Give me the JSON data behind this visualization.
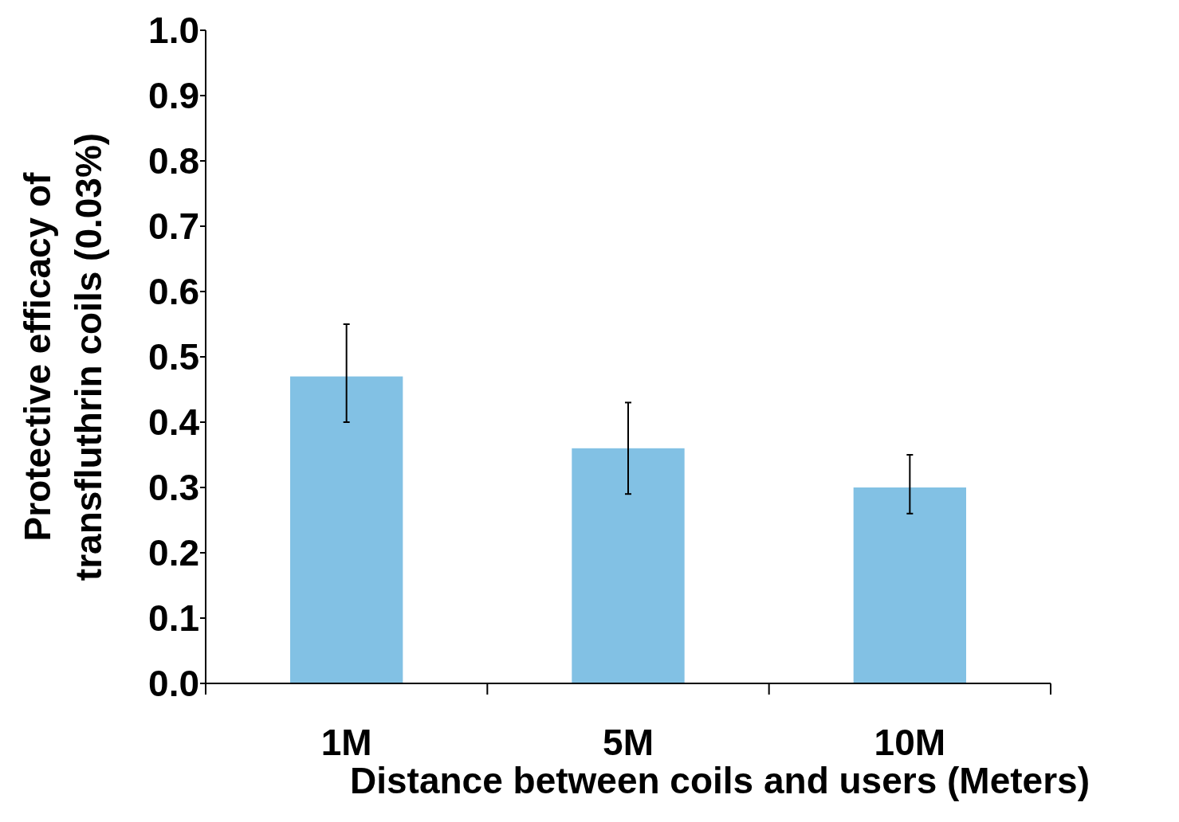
{
  "chart_data": {
    "type": "bar",
    "xlabel": "Distance between coils and users (Meters)",
    "ylabel": "Protective efficacy of\ntransfluthrin coils (0.03%)",
    "categories": [
      "1M",
      "5M",
      "10M"
    ],
    "values": [
      0.47,
      0.36,
      0.3
    ],
    "errors": [
      [
        0.4,
        0.55
      ],
      [
        0.29,
        0.43
      ],
      [
        0.26,
        0.35
      ]
    ],
    "color": "#82c1e4",
    "ylim": [
      0,
      1
    ],
    "yticks": [
      {
        "value": 0,
        "label": "0.0"
      },
      0.1,
      0.2,
      0.3,
      0.4,
      0.5,
      0.6,
      0.7,
      0.8,
      0.9,
      {
        "value": 1,
        "label": "1.0"
      }
    ],
    "grid": false
  }
}
